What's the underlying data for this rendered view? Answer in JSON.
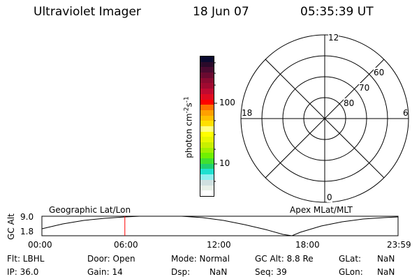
{
  "header": {
    "instrument": "Ultraviolet Imager",
    "date": "18 Jun 07",
    "time": "05:35:39 UT"
  },
  "colorbar": {
    "label": "photon cm-2s-1",
    "label_parts": [
      "photon cm",
      "-2",
      "s",
      "-1"
    ],
    "ticks": [
      "100",
      "10"
    ],
    "colors": [
      "#0a0a30",
      "#2a0a2a",
      "#4a0a30",
      "#6a0a30",
      "#8a0a30",
      "#a00a30",
      "#c00a30",
      "#e00a20",
      "#ff0000",
      "#ff7000",
      "#ffa000",
      "#ffc000",
      "#ffe000",
      "#ffff80",
      "#ffff00",
      "#e8f800",
      "#c8f000",
      "#a0f000",
      "#70f000",
      "#40e030",
      "#20d070",
      "#20e0d0",
      "#90f0f0",
      "#d0e0e0",
      "#e8f0e8",
      "#ffffff"
    ]
  },
  "polar": {
    "mlt_labels": {
      "top": "12",
      "bottom": "0",
      "left": "18",
      "right": "6"
    },
    "lat_labels": [
      "60",
      "70",
      "80"
    ]
  },
  "altitude_plot": {
    "left_title": "Geographic Lat/Lon",
    "right_title": "Apex MLat/MLT",
    "ylabel": "GC Alt",
    "yticks": [
      "9.0",
      "1.8"
    ],
    "xticks": [
      "00:00",
      "06:00",
      "12:00",
      "18:00",
      "23:59"
    ],
    "current_time_hours": 5.59,
    "marker_color": "#ff0000"
  },
  "status": {
    "row1": [
      "Flt: LBHL",
      "Door: Open",
      "Mode: Normal",
      "GC Alt: 8.8 Re",
      "GLat:",
      "NaN"
    ],
    "row2": [
      "IP: 36.0",
      "Gain: 14",
      "Dsp:",
      "NaN",
      "Seq: 39",
      "GLon:",
      "NaN"
    ]
  }
}
